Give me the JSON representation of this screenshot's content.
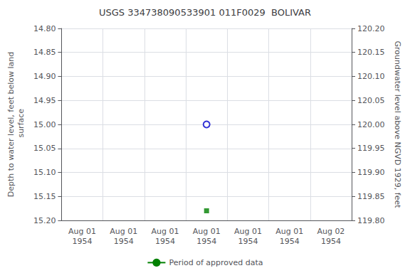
{
  "chart_data": {
    "type": "scatter",
    "title": "USGS 334738090533901 011F0029  BOLIVAR",
    "y_label": "Depth to water level, feet below land\n surface",
    "y2_label": "Groundwater level above NGVD 1929, feet",
    "categories": [
      "Aug 01\n1954",
      "Aug 01\n1954",
      "Aug 01\n1954",
      "Aug 01\n1954",
      "Aug 01\n1954",
      "Aug 01\n1954",
      "Aug 02\n1954"
    ],
    "series": [
      {
        "type": "scatter",
        "marker": "open circle",
        "color": "#0000cc",
        "values": [
          null,
          null,
          null,
          15.0,
          null,
          null,
          null
        ]
      },
      {
        "type": "scatter",
        "marker": "square",
        "color": "#008000",
        "values": [
          null,
          null,
          null,
          15.18,
          null,
          null,
          null
        ]
      },
      {
        "type": "line",
        "name": "Period of approved data",
        "color": "#008000",
        "values": [
          null,
          null,
          null,
          null,
          null,
          null,
          null
        ]
      }
    ],
    "ylim": [
      15.2,
      14.8
    ],
    "yticks": [
      {
        "value": 14.8,
        "label": "14.80"
      },
      14.85,
      {
        "value": 14.9,
        "label": "14.90"
      },
      14.95,
      {
        "value": 15.0,
        "label": "15.00"
      },
      15.05,
      {
        "value": 15.1,
        "label": "15.10"
      },
      15.15,
      {
        "value": 15.2,
        "label": "15.20"
      }
    ],
    "y2lim": [
      119.8,
      120.2
    ],
    "y2ticks": [
      {
        "value": 120.2,
        "label": "120.20"
      },
      120.15,
      {
        "value": 120.1,
        "label": "120.10"
      },
      120.05,
      {
        "value": 120.0,
        "label": "120.00"
      },
      119.95,
      {
        "value": 119.9,
        "label": "119.90"
      },
      119.85,
      {
        "value": 119.8,
        "label": "119.80"
      }
    ],
    "grid": true,
    "legend": "bottom"
  }
}
